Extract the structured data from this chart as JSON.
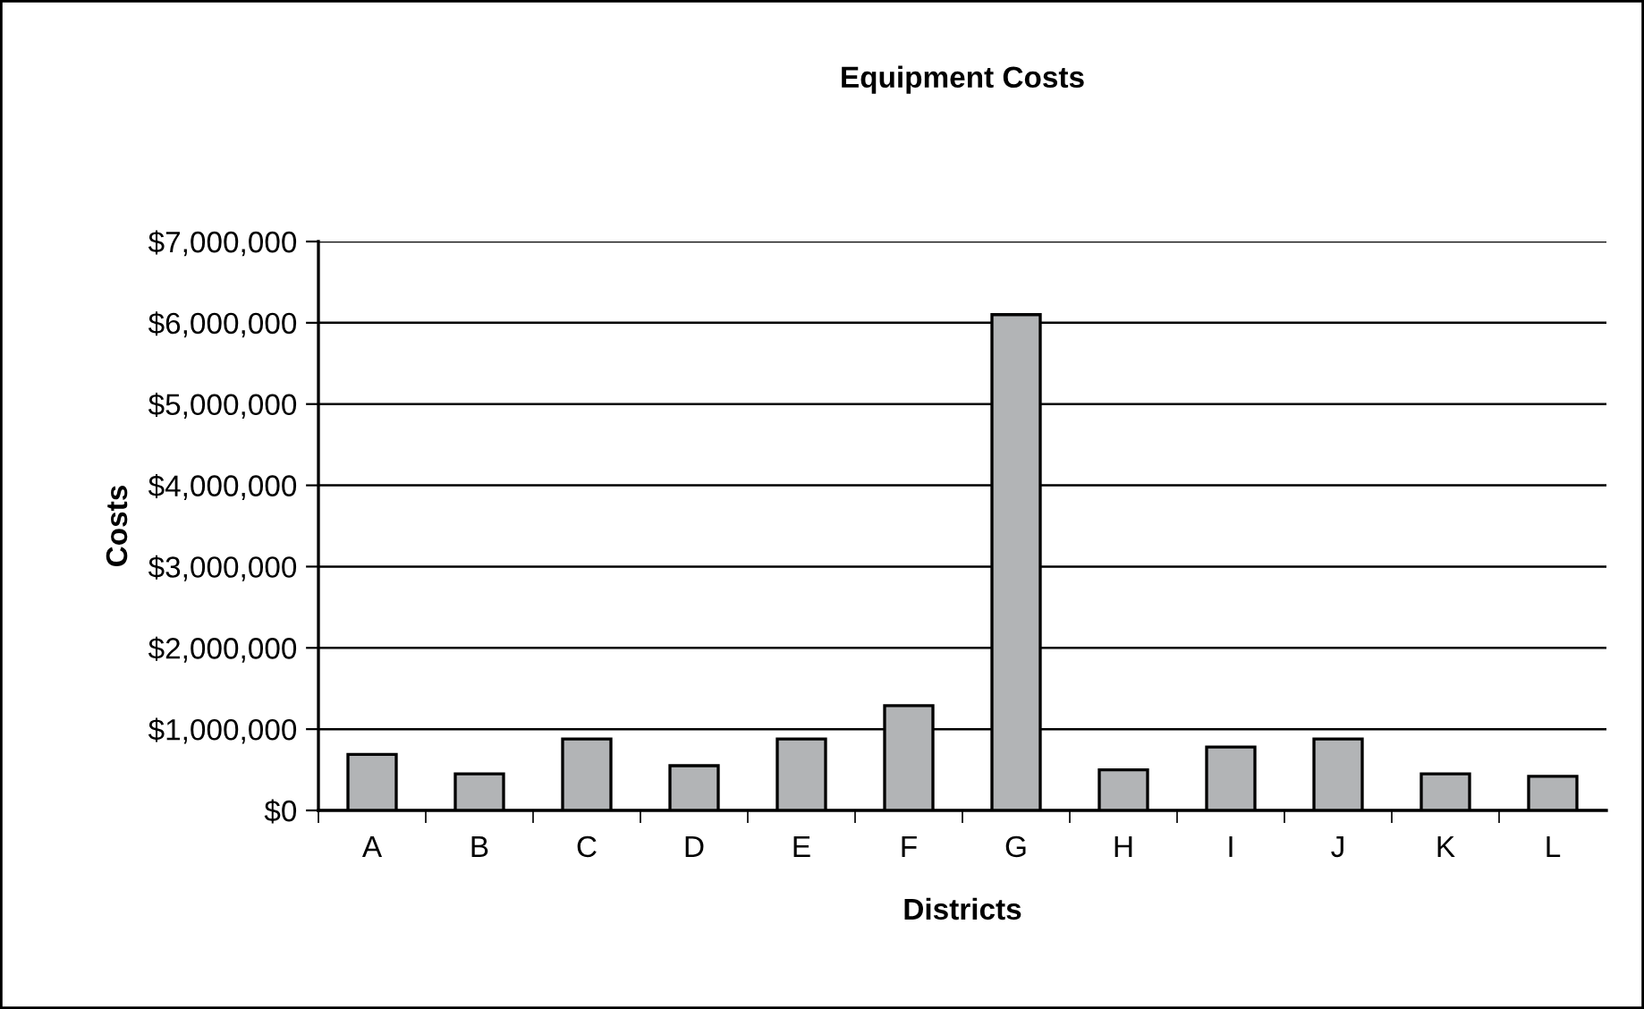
{
  "chart_data": {
    "type": "bar",
    "title": "Equipment Costs",
    "xlabel": "Districts",
    "ylabel": "Costs",
    "categories": [
      "A",
      "B",
      "C",
      "D",
      "E",
      "F",
      "G",
      "H",
      "I",
      "J",
      "K",
      "L"
    ],
    "values": [
      690000,
      450000,
      880000,
      550000,
      880000,
      1290000,
      6100000,
      500000,
      780000,
      880000,
      450000,
      420000
    ],
    "color": "#b2b4b6",
    "ylim": [
      0,
      7000000
    ],
    "yticks": [
      {
        "value": 0,
        "label": "$0"
      },
      {
        "value": 1000000,
        "label": "$1,000,000"
      },
      {
        "value": 2000000,
        "label": "$2,000,000"
      },
      {
        "value": 3000000,
        "label": "$3,000,000"
      },
      {
        "value": 4000000,
        "label": "$4,000,000"
      },
      {
        "value": 5000000,
        "label": "$5,000,000"
      },
      {
        "value": 6000000,
        "label": "$6,000,000"
      },
      {
        "value": 7000000,
        "label": "$7,000,000"
      }
    ],
    "grid": "y",
    "legend": false
  }
}
